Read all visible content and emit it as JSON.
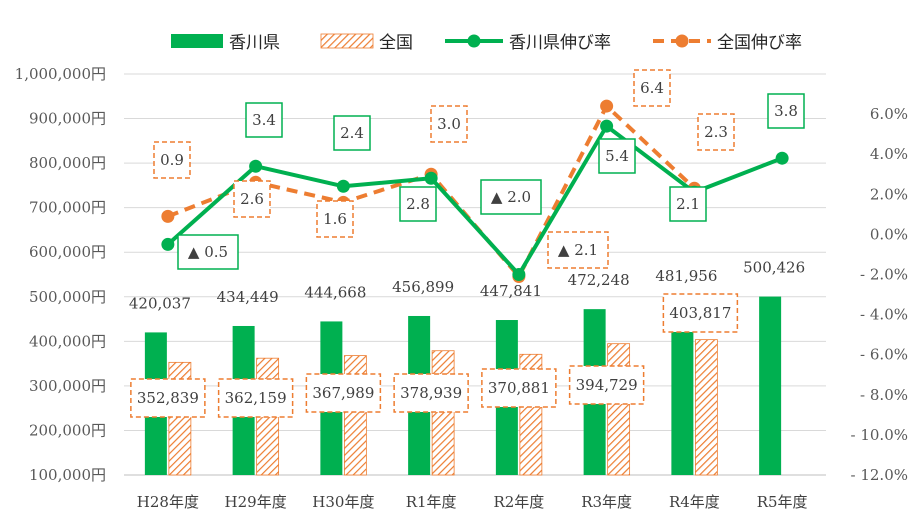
{
  "chart_data": {
    "type": "bar",
    "categories": [
      "H28年度",
      "H29年度",
      "H30年度",
      "R1年度",
      "R2年度",
      "R3年度",
      "R4年度",
      "R5年度"
    ],
    "series": [
      {
        "name": "香川県",
        "type": "bar",
        "axis": "left",
        "values": [
          420037,
          434449,
          444668,
          456899,
          447841,
          472248,
          481956,
          500426
        ],
        "labels": [
          "420,037",
          "434,449",
          "444,668",
          "456,899",
          "447,841",
          "472,248",
          "481,956",
          "500,426"
        ]
      },
      {
        "name": "全国",
        "type": "bar",
        "axis": "left",
        "pattern": "hatched",
        "values": [
          352839,
          362159,
          367989,
          378939,
          370881,
          394729,
          403817,
          null
        ],
        "labels": [
          "352,839",
          "362,159",
          "367,989",
          "378,939",
          "370,881",
          "394,729",
          "403,817",
          null
        ]
      },
      {
        "name": "香川県伸び率",
        "type": "line",
        "axis": "right",
        "values": [
          -0.5,
          3.4,
          2.4,
          2.8,
          -2.0,
          5.4,
          2.1,
          3.8
        ],
        "labels": [
          "▲ 0.5",
          "3.4",
          "2.4",
          "2.8",
          "▲ 2.0",
          "5.4",
          "2.1",
          "3.8"
        ]
      },
      {
        "name": "全国伸び率",
        "type": "line",
        "style": "dashed",
        "axis": "right",
        "values": [
          0.9,
          2.6,
          1.6,
          3.0,
          -2.1,
          6.4,
          2.3,
          null
        ],
        "labels": [
          "0.9",
          "2.6",
          "1.6",
          "3.0",
          "▲ 2.1",
          "6.4",
          "2.3",
          null
        ]
      }
    ],
    "y_left": {
      "min": 100000,
      "max": 1000000,
      "step": 100000,
      "tick_labels": [
        "100,000円",
        "200,000円",
        "300,000円",
        "400,000円",
        "500,000円",
        "600,000円",
        "700,000円",
        "800,000円",
        "900,000円",
        "1,000,000円"
      ]
    },
    "y_right": {
      "min": -12,
      "max": 8,
      "step": 2,
      "tick_labels": [
        "- 12.0%",
        "- 10.0%",
        "- 8.0%",
        "- 6.0%",
        "- 4.0%",
        "- 2.0%",
        "0.0%",
        "2.0%",
        "4.0%",
        "6.0%"
      ]
    },
    "grid": true,
    "legend_position": "top",
    "colors": {
      "kagawa": "#00b050",
      "national": "#ed7d31",
      "grid": "#d9d9d9"
    }
  }
}
